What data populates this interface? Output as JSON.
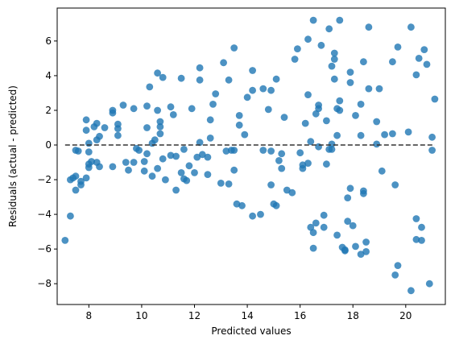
{
  "chart_data": {
    "type": "scatter",
    "title": "",
    "xlabel": "Predicted values",
    "ylabel": "Residuals (actual - predicted)",
    "xlim": [
      6.8,
      21.5
    ],
    "ylim": [
      -9.2,
      7.9
    ],
    "xticks": [
      8,
      10,
      12,
      14,
      16,
      18,
      20
    ],
    "yticks": [
      -8,
      -6,
      -4,
      -2,
      0,
      2,
      4,
      6
    ],
    "grid": false,
    "reference_line": {
      "y": 0,
      "x_range": [
        7.1,
        21.1
      ],
      "style": "dashed",
      "color": "#333333"
    },
    "point_color": "#1f77b4",
    "points": [
      [
        7.1,
        -5.5
      ],
      [
        7.3,
        -4.1
      ],
      [
        7.3,
        -2.0
      ],
      [
        7.4,
        -1.9
      ],
      [
        7.5,
        -1.8
      ],
      [
        7.5,
        -2.6
      ],
      [
        7.5,
        -0.3
      ],
      [
        7.6,
        -0.35
      ],
      [
        7.7,
        -2.3
      ],
      [
        7.7,
        -2.1
      ],
      [
        7.9,
        1.45
      ],
      [
        7.9,
        0.85
      ],
      [
        7.9,
        -1.9
      ],
      [
        8.0,
        0.1
      ],
      [
        8.0,
        -0.4
      ],
      [
        8.0,
        -1.1
      ],
      [
        8.0,
        -1.3
      ],
      [
        8.1,
        -0.95
      ],
      [
        8.2,
        1.05
      ],
      [
        8.3,
        1.25
      ],
      [
        8.3,
        0.3
      ],
      [
        8.3,
        -1.0
      ],
      [
        8.4,
        0.5
      ],
      [
        8.4,
        -1.25
      ],
      [
        8.6,
        1.0
      ],
      [
        8.9,
        2.0
      ],
      [
        8.9,
        1.85
      ],
      [
        8.9,
        -1.25
      ],
      [
        9.1,
        0.95
      ],
      [
        9.1,
        1.2
      ],
      [
        9.1,
        0.55
      ],
      [
        9.3,
        2.3
      ],
      [
        9.4,
        -1.0
      ],
      [
        9.5,
        -1.45
      ],
      [
        9.7,
        2.1
      ],
      [
        9.7,
        -1.0
      ],
      [
        9.8,
        -0.2
      ],
      [
        9.9,
        -0.3
      ],
      [
        10.1,
        -1.5
      ],
      [
        10.1,
        -0.95
      ],
      [
        10.2,
        2.25
      ],
      [
        10.2,
        1.0
      ],
      [
        10.2,
        -0.5
      ],
      [
        10.3,
        3.35
      ],
      [
        10.4,
        0.1
      ],
      [
        10.4,
        -1.8
      ],
      [
        10.5,
        0.3
      ],
      [
        10.6,
        4.15
      ],
      [
        10.6,
        2.0
      ],
      [
        10.6,
        -1.35
      ],
      [
        10.7,
        1.35
      ],
      [
        10.7,
        1.05
      ],
      [
        10.7,
        0.65
      ],
      [
        10.8,
        3.9
      ],
      [
        10.8,
        -0.8
      ],
      [
        10.9,
        -2.0
      ],
      [
        11.1,
        2.2
      ],
      [
        11.1,
        -0.6
      ],
      [
        11.2,
        1.75
      ],
      [
        11.3,
        -0.65
      ],
      [
        11.3,
        -2.6
      ],
      [
        11.5,
        3.85
      ],
      [
        11.5,
        -1.6
      ],
      [
        11.6,
        -0.25
      ],
      [
        11.6,
        -1.95
      ],
      [
        11.7,
        -2.05
      ],
      [
        11.8,
        -1.2
      ],
      [
        11.9,
        2.1
      ],
      [
        12.0,
        -1.6
      ],
      [
        12.1,
        -0.7
      ],
      [
        12.2,
        4.45
      ],
      [
        12.2,
        3.75
      ],
      [
        12.2,
        0.15
      ],
      [
        12.3,
        -0.55
      ],
      [
        12.5,
        -1.7
      ],
      [
        12.5,
        -0.7
      ],
      [
        12.6,
        1.45
      ],
      [
        12.6,
        0.4
      ],
      [
        12.7,
        2.35
      ],
      [
        12.8,
        2.95
      ],
      [
        13.0,
        -2.2
      ],
      [
        13.1,
        4.75
      ],
      [
        13.2,
        -0.35
      ],
      [
        13.3,
        3.75
      ],
      [
        13.3,
        -2.25
      ],
      [
        13.4,
        -0.3
      ],
      [
        13.5,
        5.6
      ],
      [
        13.5,
        -0.3
      ],
      [
        13.5,
        -1.45
      ],
      [
        13.6,
        -3.4
      ],
      [
        13.7,
        1.7
      ],
      [
        13.7,
        1.15
      ],
      [
        13.8,
        -3.5
      ],
      [
        13.9,
        0.6
      ],
      [
        14.0,
        2.75
      ],
      [
        14.2,
        4.3
      ],
      [
        14.2,
        3.15
      ],
      [
        14.2,
        -4.1
      ],
      [
        14.5,
        -4.0
      ],
      [
        14.6,
        -0.3
      ],
      [
        14.6,
        3.25
      ],
      [
        14.8,
        2.05
      ],
      [
        14.9,
        3.15
      ],
      [
        14.9,
        -0.35
      ],
      [
        14.9,
        -2.3
      ],
      [
        15.0,
        -3.4
      ],
      [
        15.1,
        -3.5
      ],
      [
        15.1,
        3.8
      ],
      [
        15.2,
        -0.9
      ],
      [
        15.3,
        -0.5
      ],
      [
        15.3,
        -1.35
      ],
      [
        15.4,
        1.6
      ],
      [
        15.5,
        -2.6
      ],
      [
        15.7,
        -2.75
      ],
      [
        15.8,
        4.95
      ],
      [
        15.9,
        5.55
      ],
      [
        16.0,
        -0.45
      ],
      [
        16.1,
        -1.15
      ],
      [
        16.1,
        -1.35
      ],
      [
        16.2,
        1.25
      ],
      [
        16.3,
        2.9
      ],
      [
        16.3,
        6.1
      ],
      [
        16.3,
        -1.05
      ],
      [
        16.4,
        0.2
      ],
      [
        16.4,
        -4.75
      ],
      [
        16.5,
        7.2
      ],
      [
        16.5,
        -5.05
      ],
      [
        16.5,
        -5.95
      ],
      [
        16.6,
        1.8
      ],
      [
        16.6,
        -4.5
      ],
      [
        16.7,
        -0.1
      ],
      [
        16.7,
        2.1
      ],
      [
        16.7,
        2.3
      ],
      [
        16.8,
        5.75
      ],
      [
        16.9,
        -4.05
      ],
      [
        16.9,
        -4.75
      ],
      [
        17.0,
        1.4
      ],
      [
        17.0,
        -1.1
      ],
      [
        17.1,
        6.7
      ],
      [
        17.1,
        -0.25
      ],
      [
        17.2,
        4.55
      ],
      [
        17.2,
        -0.25
      ],
      [
        17.2,
        0.05
      ],
      [
        17.3,
        5.3
      ],
      [
        17.3,
        4.95
      ],
      [
        17.3,
        3.8
      ],
      [
        17.4,
        2.1
      ],
      [
        17.4,
        0.55
      ],
      [
        17.4,
        -5.2
      ],
      [
        17.5,
        2.0
      ],
      [
        17.5,
        7.2
      ],
      [
        17.5,
        2.55
      ],
      [
        17.6,
        -5.9
      ],
      [
        17.7,
        -6.1
      ],
      [
        17.7,
        -6.05
      ],
      [
        17.8,
        -4.4
      ],
      [
        17.8,
        -3.05
      ],
      [
        17.9,
        -2.5
      ],
      [
        17.9,
        3.6
      ],
      [
        17.9,
        4.2
      ],
      [
        18.0,
        -4.65
      ],
      [
        18.1,
        1.7
      ],
      [
        18.1,
        -5.85
      ],
      [
        18.3,
        -6.3
      ],
      [
        18.3,
        0.55
      ],
      [
        18.3,
        2.35
      ],
      [
        18.4,
        4.8
      ],
      [
        18.4,
        -2.65
      ],
      [
        18.4,
        -2.8
      ],
      [
        18.5,
        -5.6
      ],
      [
        18.5,
        -6.15
      ],
      [
        18.6,
        6.8
      ],
      [
        18.6,
        3.25
      ],
      [
        18.9,
        1.35
      ],
      [
        18.9,
        0.05
      ],
      [
        19.0,
        3.25
      ],
      [
        19.1,
        -1.5
      ],
      [
        19.2,
        0.6
      ],
      [
        19.5,
        4.8
      ],
      [
        19.5,
        0.65
      ],
      [
        19.6,
        -7.5
      ],
      [
        19.6,
        -2.3
      ],
      [
        19.7,
        5.65
      ],
      [
        19.7,
        -6.95
      ],
      [
        20.1,
        0.75
      ],
      [
        20.2,
        -8.4
      ],
      [
        20.2,
        6.8
      ],
      [
        20.4,
        4.05
      ],
      [
        20.4,
        -4.25
      ],
      [
        20.4,
        -5.45
      ],
      [
        20.5,
        5.0
      ],
      [
        20.6,
        -5.5
      ],
      [
        20.6,
        -4.75
      ],
      [
        20.7,
        5.5
      ],
      [
        20.8,
        4.65
      ],
      [
        20.9,
        -8.0
      ],
      [
        21.0,
        0.45
      ],
      [
        21.0,
        -0.3
      ],
      [
        21.1,
        2.65
      ]
    ]
  }
}
